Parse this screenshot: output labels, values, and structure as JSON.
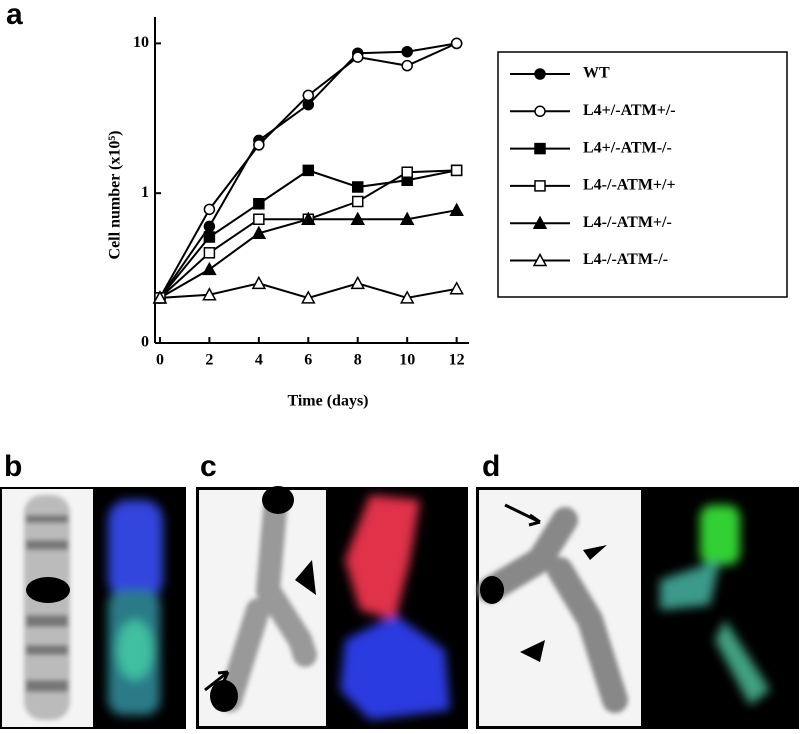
{
  "panel_labels": [
    "a",
    "b",
    "c",
    "d"
  ],
  "chart_data": {
    "type": "line",
    "x_label": "Time (days)",
    "y_label": "Cell number (x10⁵)",
    "yscale": "log",
    "x": [
      0,
      2,
      4,
      6,
      8,
      10,
      12
    ],
    "xlim": [
      -0.2,
      12.5
    ],
    "xticks": [
      0,
      2,
      4,
      6,
      8,
      10,
      12
    ],
    "ylim": [
      0.1,
      15
    ],
    "yticks": [
      {
        "value": 0.1,
        "label": "0"
      },
      1,
      10
    ],
    "legend": "outside-right",
    "series": [
      {
        "name": "WT",
        "color": "#000000",
        "marker": "circle",
        "filled": true,
        "values": [
          0.2,
          0.6,
          2.25,
          3.9,
          8.6,
          8.8,
          10
        ]
      },
      {
        "name": "L4+/-ATM+/-",
        "color": "#000000",
        "marker": "circle",
        "filled": false,
        "values": [
          0.2,
          0.78,
          2.1,
          4.5,
          8.1,
          7.1,
          10
        ]
      },
      {
        "name": "L4+/-ATM-/-",
        "color": "#000000",
        "marker": "square",
        "filled": true,
        "values": [
          0.2,
          0.51,
          0.85,
          1.42,
          1.1,
          1.22,
          1.42
        ]
      },
      {
        "name": "L4-/-ATM+/+",
        "color": "#000000",
        "marker": "square",
        "filled": false,
        "values": [
          0.2,
          0.4,
          0.67,
          0.67,
          0.88,
          1.38,
          1.42
        ]
      },
      {
        "name": "L4-/-ATM+/-",
        "color": "#000000",
        "marker": "triangle",
        "filled": true,
        "values": [
          0.2,
          0.31,
          0.54,
          0.67,
          0.67,
          0.67,
          0.77
        ]
      },
      {
        "name": "L4-/-ATM-/-",
        "color": "#000000",
        "marker": "triangle",
        "filled": false,
        "values": [
          0.2,
          0.21,
          0.25,
          0.2,
          0.25,
          0.2,
          0.23
        ]
      }
    ]
  }
}
